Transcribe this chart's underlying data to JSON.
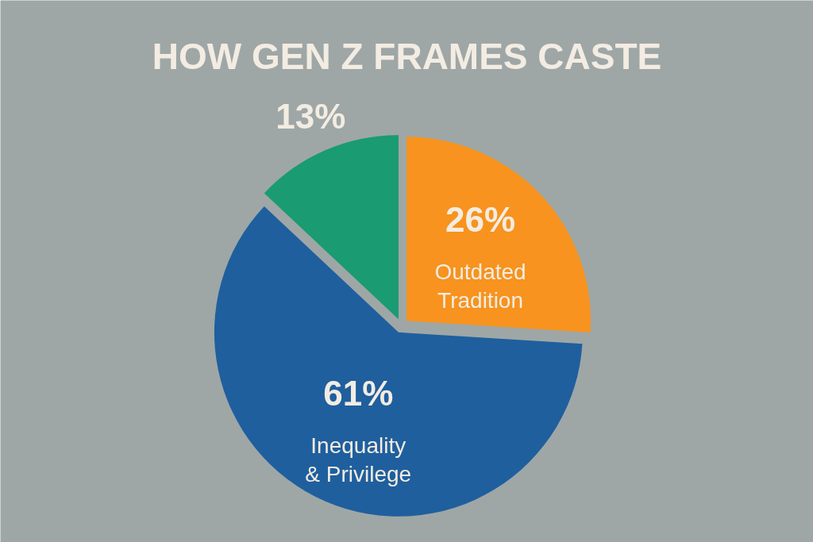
{
  "chart_data": {
    "type": "pie",
    "title": "HOW GEN Z FRAMES CASTE",
    "categories": [
      "Outdated\nTradition",
      "Inequality\n& Privilege",
      null
    ],
    "values": [
      26,
      61,
      13
    ],
    "colors": [
      "#f7931e",
      "#1f5f9e",
      "#1a9b72"
    ],
    "value_labels": [
      "26%",
      "61%",
      "13%"
    ]
  }
}
